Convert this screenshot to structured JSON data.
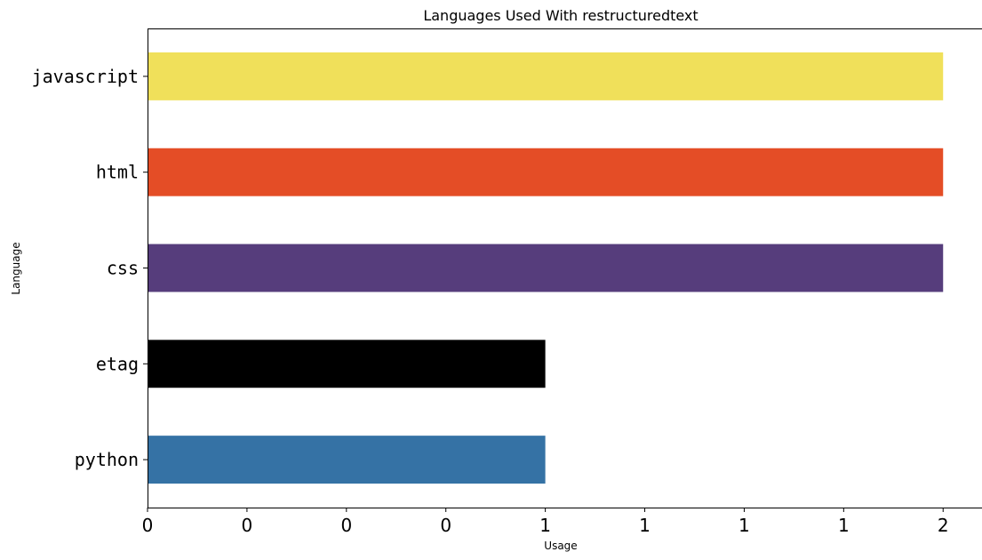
{
  "chart_data": {
    "type": "bar",
    "orientation": "horizontal",
    "title": "Languages Used With restructuredtext",
    "xlabel": "Usage",
    "ylabel": "Language",
    "categories": [
      "javascript",
      "html",
      "css",
      "etag",
      "python"
    ],
    "values": [
      2,
      2,
      2,
      1,
      1
    ],
    "colors": [
      "#f0e05a",
      "#e44d26",
      "#563d7c",
      "#000000",
      "#3572a5"
    ],
    "xlim": [
      0,
      2.1
    ],
    "xticks": [
      0,
      0.25,
      0.5,
      0.75,
      1,
      1.25,
      1.5,
      1.75,
      2
    ],
    "xtick_labels": [
      "0",
      "0",
      "0",
      "0",
      "1",
      "1",
      "1",
      "1",
      "2"
    ],
    "grid": false,
    "legend": "none"
  }
}
